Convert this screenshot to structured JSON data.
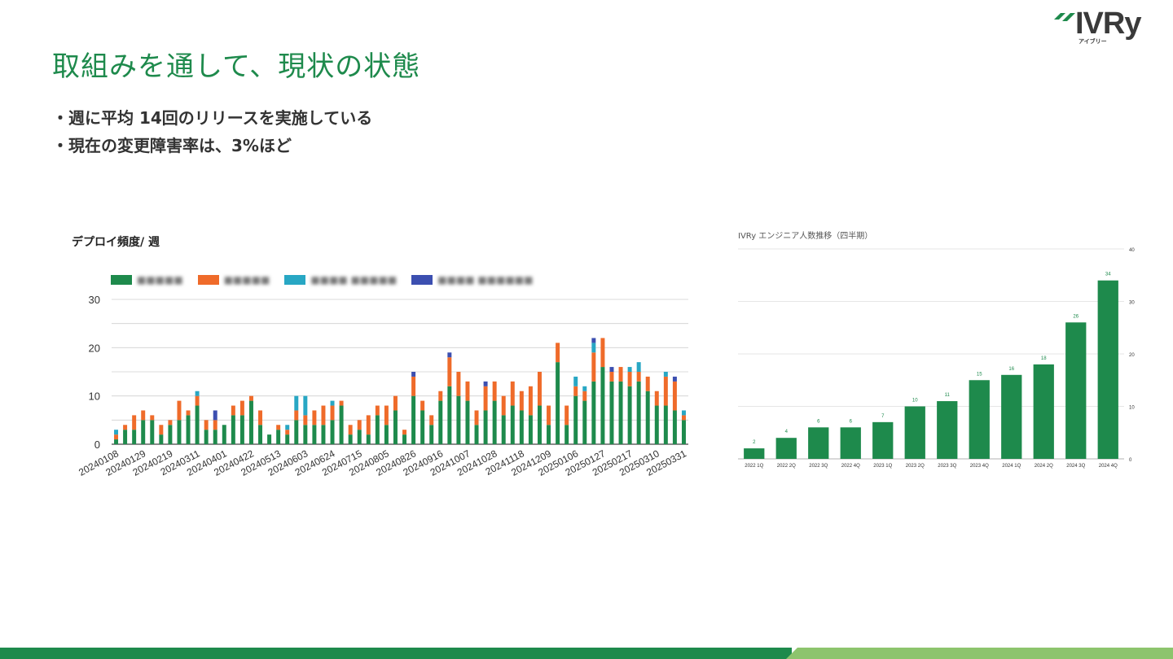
{
  "slide": {
    "title": "取組みを通して、現状の状態",
    "bullets": [
      "・週に平均 14回のリリースを実施している",
      "・現在の変更障害率は、3%ほど"
    ]
  },
  "logo": {
    "text": "IVRy",
    "subtext": "アイブリー"
  },
  "colors": {
    "title": "#1e8a4c",
    "footer_dark": "#1e8a4c",
    "footer_light": "#8dc46d"
  },
  "chart_data": [
    {
      "type": "bar",
      "stacked": true,
      "title": "デプロイ頻度/ 週",
      "ylim": [
        0,
        30
      ],
      "yticks": [
        0,
        10,
        20,
        30
      ],
      "grid": true,
      "legend_placement": "top-left",
      "series": [
        {
          "color": "#1e8a4c",
          "values": [
            1,
            3,
            3,
            5,
            5,
            2,
            4,
            5,
            6,
            8,
            3,
            3,
            4,
            6,
            6,
            9,
            4,
            2,
            3,
            2,
            5,
            4,
            4,
            4,
            5,
            8,
            2,
            3,
            2,
            6,
            4,
            7,
            2,
            10,
            7,
            4,
            9,
            12,
            10,
            9,
            4,
            7,
            9,
            6,
            8,
            7,
            6,
            8,
            4,
            17,
            4,
            10,
            9,
            13,
            16,
            13,
            13,
            12,
            13,
            11,
            8,
            8,
            7,
            5
          ]
        },
        {
          "color": "#ef6b2a",
          "values": [
            1,
            1,
            3,
            2,
            1,
            2,
            1,
            4,
            1,
            2,
            2,
            2,
            0,
            2,
            3,
            1,
            3,
            0,
            1,
            1,
            2,
            2,
            3,
            4,
            3,
            1,
            2,
            2,
            4,
            2,
            4,
            3,
            1,
            4,
            2,
            2,
            2,
            6,
            5,
            4,
            3,
            5,
            4,
            4,
            5,
            4,
            6,
            7,
            4,
            4,
            4,
            2,
            2,
            6,
            6,
            2,
            3,
            3,
            2,
            3,
            3,
            6,
            6,
            1
          ]
        },
        {
          "color": "#28a7c4",
          "values": [
            1,
            0,
            0,
            0,
            0,
            0,
            0,
            0,
            0,
            1,
            0,
            0,
            0,
            0,
            0,
            0,
            0,
            0,
            0,
            1,
            3,
            4,
            0,
            0,
            1,
            0,
            0,
            0,
            0,
            0,
            0,
            0,
            0,
            0,
            0,
            0,
            0,
            0,
            0,
            0,
            0,
            0,
            0,
            0,
            0,
            0,
            0,
            0,
            0,
            0,
            0,
            2,
            1,
            2,
            0,
            0,
            0,
            1,
            2,
            0,
            0,
            1,
            0,
            1
          ]
        },
        {
          "color": "#3c4fb0",
          "values": [
            0,
            0,
            0,
            0,
            0,
            0,
            0,
            0,
            0,
            0,
            0,
            2,
            0,
            0,
            0,
            0,
            0,
            0,
            0,
            0,
            0,
            0,
            0,
            0,
            0,
            0,
            0,
            0,
            0,
            0,
            0,
            0,
            0,
            1,
            0,
            0,
            0,
            1,
            0,
            0,
            0,
            1,
            0,
            0,
            0,
            0,
            0,
            0,
            0,
            0,
            0,
            0,
            0,
            1,
            0,
            1,
            0,
            0,
            0,
            0,
            0,
            0,
            1,
            0
          ]
        }
      ],
      "xtick_labels": [
        "20240108",
        "20240129",
        "20240219",
        "20240311",
        "20240401",
        "20240422",
        "20240513",
        "20240603",
        "20240624",
        "20240715",
        "20240805",
        "20240826",
        "20240916",
        "20241007",
        "20241028",
        "20241118",
        "20241209",
        "20250106",
        "20250127",
        "20250217",
        "20250310",
        "20250331"
      ]
    },
    {
      "type": "bar",
      "title": "IVRy エンジニア人数推移（四半期）",
      "categories": [
        "2022 1Q",
        "2022 2Q",
        "2022 3Q",
        "2022 4Q",
        "2023 1Q",
        "2023 2Q",
        "2023 3Q",
        "2023 4Q",
        "2024 1Q",
        "2024 2Q",
        "2024 3Q",
        "2024 4Q"
      ],
      "values": [
        2,
        4,
        6,
        6,
        7,
        10,
        11,
        15,
        16,
        18,
        26,
        34
      ],
      "ylim": [
        0,
        40
      ],
      "yticks": [
        0,
        10,
        20,
        30,
        40
      ],
      "y_axis_side": "right",
      "grid": true,
      "color": "#1e8a4c"
    }
  ]
}
